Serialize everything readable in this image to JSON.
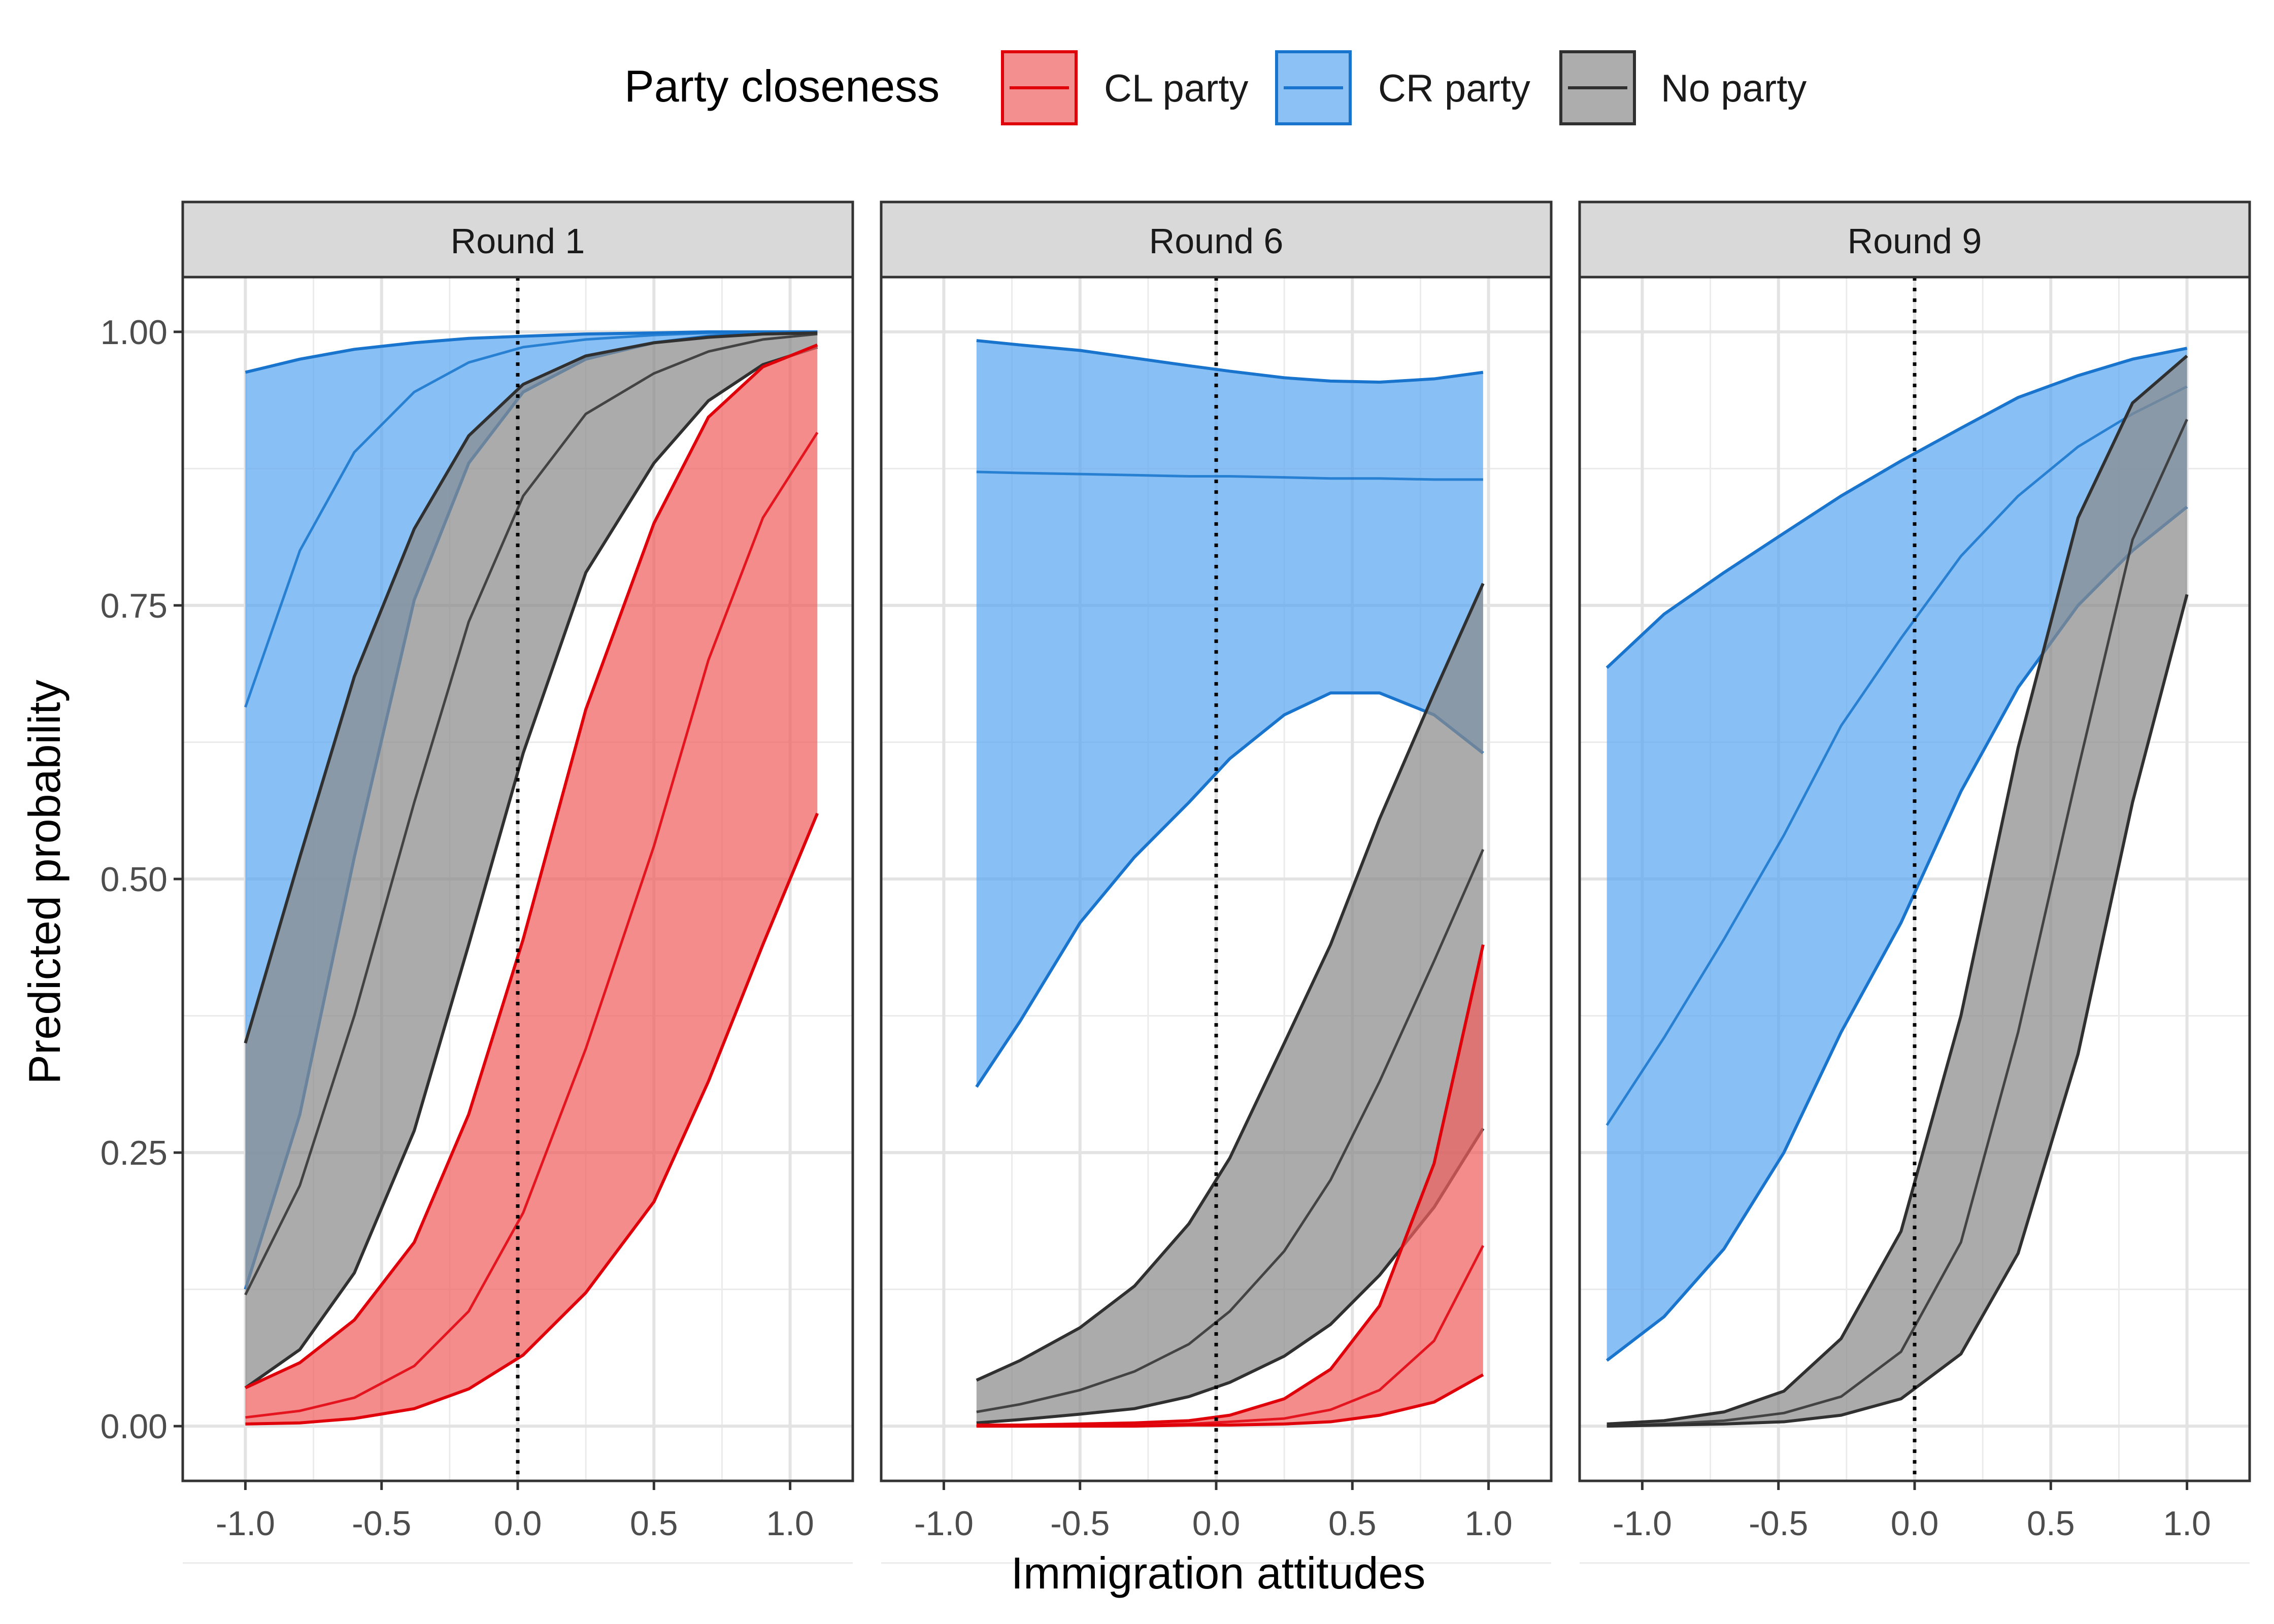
{
  "legend": {
    "title": "Party closeness",
    "items": [
      {
        "label": "CL party",
        "color": "#E0000A",
        "fill": "#F06060"
      },
      {
        "label": "CR party",
        "color": "#1874CD",
        "fill": "#5AA6F0"
      },
      {
        "label": "No party",
        "color": "#303030",
        "fill": "#8A8A8A"
      }
    ]
  },
  "axes": {
    "xlabel": "Immigration attitudes",
    "ylabel": "Predicted probability",
    "x_ticks": [
      "-1.0",
      "-0.5",
      "0.0",
      "0.5",
      "1.0"
    ],
    "y_ticks": [
      "0.00",
      "0.25",
      "0.50",
      "0.75",
      "1.00"
    ]
  },
  "chart_data": {
    "type": "area",
    "xlim": [
      -1.23,
      1.23
    ],
    "ylim": [
      -0.05,
      1.05
    ],
    "reference_line_x": 0,
    "grid": true,
    "legend_position": "top",
    "panels": [
      {
        "title": "Round 1",
        "series": [
          {
            "name": "CR party",
            "x": [
              -1.0,
              -0.8,
              -0.6,
              -0.38,
              -0.18,
              0.02,
              0.25,
              0.5,
              0.7,
              0.9,
              1.1
            ],
            "upper": [
              0.963,
              0.975,
              0.984,
              0.99,
              0.994,
              0.996,
              0.998,
              0.999,
              1.0,
              1.0,
              1.0
            ],
            "mid": [
              0.657,
              0.8,
              0.89,
              0.945,
              0.972,
              0.986,
              0.993,
              0.997,
              0.999,
              1.0,
              1.0
            ],
            "lower": [
              0.125,
              0.285,
              0.52,
              0.755,
              0.88,
              0.945,
              0.975,
              0.99,
              0.996,
              0.999,
              1.0
            ]
          },
          {
            "name": "No party",
            "x": [
              -1.0,
              -0.8,
              -0.6,
              -0.38,
              -0.18,
              0.02,
              0.25,
              0.5,
              0.7,
              0.9,
              1.1
            ],
            "upper": [
              0.35,
              0.52,
              0.685,
              0.82,
              0.905,
              0.952,
              0.978,
              0.99,
              0.995,
              0.998,
              0.999
            ],
            "mid": [
              0.12,
              0.22,
              0.375,
              0.57,
              0.735,
              0.85,
              0.925,
              0.962,
              0.982,
              0.993,
              0.998
            ],
            "lower": [
              0.035,
              0.07,
              0.14,
              0.27,
              0.44,
              0.615,
              0.78,
              0.88,
              0.937,
              0.97,
              0.986
            ]
          },
          {
            "name": "CL party",
            "x": [
              -1.0,
              -0.8,
              -0.6,
              -0.38,
              -0.18,
              0.02,
              0.25,
              0.5,
              0.7,
              0.9,
              1.1
            ],
            "upper": [
              0.035,
              0.058,
              0.097,
              0.168,
              0.285,
              0.445,
              0.655,
              0.825,
              0.922,
              0.968,
              0.988
            ],
            "mid": [
              0.008,
              0.014,
              0.026,
              0.055,
              0.105,
              0.195,
              0.345,
              0.53,
              0.7,
              0.83,
              0.908
            ],
            "lower": [
              0.002,
              0.003,
              0.007,
              0.016,
              0.034,
              0.065,
              0.122,
              0.205,
              0.315,
              0.44,
              0.56
            ]
          }
        ]
      },
      {
        "title": "Round 6",
        "series": [
          {
            "name": "CR party",
            "x": [
              -0.88,
              -0.72,
              -0.5,
              -0.3,
              -0.1,
              0.05,
              0.25,
              0.42,
              0.6,
              0.8,
              0.98
            ],
            "upper": [
              0.992,
              0.988,
              0.983,
              0.976,
              0.969,
              0.964,
              0.958,
              0.955,
              0.954,
              0.957,
              0.963
            ],
            "mid": [
              0.872,
              0.871,
              0.87,
              0.869,
              0.868,
              0.868,
              0.867,
              0.866,
              0.866,
              0.865,
              0.865
            ],
            "lower": [
              0.31,
              0.37,
              0.46,
              0.52,
              0.57,
              0.61,
              0.65,
              0.67,
              0.67,
              0.65,
              0.615
            ]
          },
          {
            "name": "No party",
            "x": [
              -0.88,
              -0.72,
              -0.5,
              -0.3,
              -0.1,
              0.05,
              0.25,
              0.42,
              0.6,
              0.8,
              0.98
            ],
            "upper": [
              0.042,
              0.06,
              0.09,
              0.128,
              0.185,
              0.245,
              0.35,
              0.44,
              0.555,
              0.67,
              0.77
            ],
            "mid": [
              0.013,
              0.02,
              0.033,
              0.05,
              0.075,
              0.105,
              0.16,
              0.225,
              0.315,
              0.425,
              0.527
            ],
            "lower": [
              0.003,
              0.006,
              0.011,
              0.016,
              0.027,
              0.04,
              0.064,
              0.093,
              0.138,
              0.2,
              0.272
            ]
          },
          {
            "name": "CL party",
            "x": [
              -0.88,
              -0.72,
              -0.5,
              -0.3,
              -0.1,
              0.05,
              0.25,
              0.42,
              0.6,
              0.8,
              0.98
            ],
            "upper": [
              0.001,
              0.001,
              0.002,
              0.003,
              0.005,
              0.01,
              0.025,
              0.052,
              0.11,
              0.24,
              0.44
            ],
            "mid": [
              0.0,
              0.0,
              0.001,
              0.001,
              0.002,
              0.004,
              0.007,
              0.015,
              0.033,
              0.078,
              0.165
            ],
            "lower": [
              0.0,
              0.0,
              0.0,
              0.0,
              0.001,
              0.001,
              0.002,
              0.004,
              0.01,
              0.022,
              0.047
            ]
          }
        ]
      },
      {
        "title": "Round 9",
        "series": [
          {
            "name": "CR party",
            "x": [
              -1.13,
              -0.92,
              -0.7,
              -0.48,
              -0.27,
              -0.05,
              0.17,
              0.38,
              0.6,
              0.8,
              1.0
            ],
            "upper": [
              0.693,
              0.742,
              0.78,
              0.816,
              0.85,
              0.882,
              0.912,
              0.94,
              0.96,
              0.975,
              0.985
            ],
            "mid": [
              0.275,
              0.355,
              0.445,
              0.54,
              0.64,
              0.72,
              0.795,
              0.85,
              0.895,
              0.925,
              0.95
            ],
            "lower": [
              0.06,
              0.1,
              0.162,
              0.25,
              0.36,
              0.46,
              0.58,
              0.675,
              0.75,
              0.8,
              0.84
            ]
          },
          {
            "name": "No party",
            "x": [
              -1.13,
              -0.92,
              -0.7,
              -0.48,
              -0.27,
              -0.05,
              0.17,
              0.38,
              0.6,
              0.8,
              1.0
            ],
            "upper": [
              0.002,
              0.005,
              0.013,
              0.032,
              0.08,
              0.178,
              0.375,
              0.62,
              0.83,
              0.935,
              0.978
            ],
            "mid": [
              0.0,
              0.002,
              0.005,
              0.012,
              0.027,
              0.068,
              0.168,
              0.36,
              0.6,
              0.81,
              0.92
            ],
            "lower": [
              0.0,
              0.001,
              0.002,
              0.004,
              0.01,
              0.025,
              0.066,
              0.158,
              0.34,
              0.57,
              0.76
            ]
          }
        ]
      }
    ]
  }
}
